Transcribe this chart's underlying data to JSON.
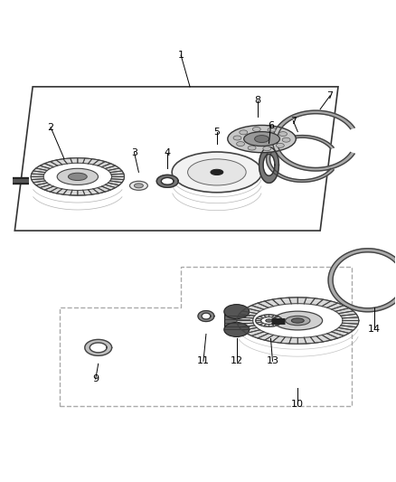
{
  "bg_color": "#ffffff",
  "line_color": "#000000",
  "dark_gray": "#444444",
  "mid_gray": "#888888",
  "light_gray": "#cccccc",
  "dashed_color": "#999999"
}
